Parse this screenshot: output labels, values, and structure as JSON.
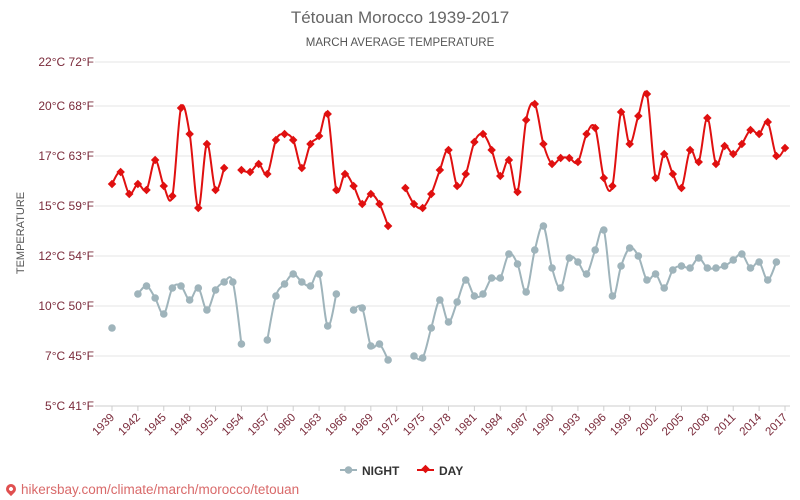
{
  "chart_data": {
    "type": "line",
    "title": "Tétouan Morocco 1939-2017",
    "subtitle": "MARCH AVERAGE TEMPERATURE",
    "ylabel": "TEMPERATURE",
    "ylim": [
      5,
      22.2
    ],
    "xlim": [
      1939,
      2017
    ],
    "grid": true,
    "legend_position": "bottom-center",
    "y_ticks": [
      {
        "value": 5,
        "label": "5°C 41°F"
      },
      {
        "value": 7.5,
        "label": "7°C 45°F"
      },
      {
        "value": 10,
        "label": "10°C 50°F"
      },
      {
        "value": 12.5,
        "label": "12°C 54°F"
      },
      {
        "value": 15,
        "label": "15°C 59°F"
      },
      {
        "value": 17.5,
        "label": "17°C 63°F"
      },
      {
        "value": 20,
        "label": "20°C 68°F"
      },
      {
        "value": 22.2,
        "label": "22°C 72°F"
      }
    ],
    "x_ticks": [
      "1939",
      "1942",
      "1945",
      "1948",
      "1951",
      "1954",
      "1957",
      "1960",
      "1963",
      "1966",
      "1969",
      "1972",
      "1975",
      "1978",
      "1981",
      "1984",
      "1987",
      "1990",
      "1993",
      "1996",
      "1999",
      "2002",
      "2005",
      "2008",
      "2011",
      "2014",
      "2017"
    ],
    "x": [
      1939,
      1940,
      1941,
      1942,
      1943,
      1944,
      1945,
      1946,
      1947,
      1948,
      1949,
      1950,
      1951,
      1952,
      1953,
      1954,
      1955,
      1956,
      1957,
      1958,
      1959,
      1960,
      1961,
      1962,
      1963,
      1964,
      1965,
      1966,
      1967,
      1968,
      1969,
      1970,
      1971,
      1972,
      1973,
      1974,
      1975,
      1976,
      1977,
      1978,
      1979,
      1980,
      1981,
      1982,
      1983,
      1984,
      1985,
      1986,
      1987,
      1988,
      1989,
      1990,
      1991,
      1992,
      1993,
      1994,
      1995,
      1996,
      1997,
      1998,
      1999,
      2000,
      2001,
      2002,
      2003,
      2004,
      2005,
      2006,
      2007,
      2008,
      2009,
      2010,
      2011,
      2012,
      2013,
      2014,
      2015,
      2016,
      2017
    ],
    "series": [
      {
        "name": "NIGHT",
        "color": "#9fb4bb",
        "values": [
          8.9,
          null,
          null,
          10.6,
          11.0,
          10.4,
          9.6,
          10.9,
          11.0,
          10.3,
          10.9,
          9.8,
          10.8,
          11.2,
          11.2,
          8.1,
          null,
          null,
          8.3,
          10.5,
          11.1,
          11.6,
          11.2,
          11.0,
          11.6,
          9.0,
          10.6,
          null,
          9.8,
          9.9,
          8.0,
          8.1,
          7.3,
          null,
          null,
          7.5,
          7.4,
          8.9,
          10.3,
          9.2,
          10.2,
          11.3,
          10.5,
          10.6,
          11.4,
          11.4,
          12.6,
          12.1,
          10.7,
          12.8,
          14.0,
          11.9,
          10.9,
          12.4,
          12.2,
          11.6,
          12.8,
          13.8,
          10.5,
          12.0,
          12.9,
          12.5,
          11.3,
          11.6,
          10.9,
          11.8,
          12.0,
          11.9,
          12.4,
          11.9,
          11.9,
          12.0,
          12.3,
          12.6,
          11.9,
          12.2,
          11.3,
          12.2,
          null
        ]
      },
      {
        "name": "DAY",
        "color": "#e01010",
        "values": [
          16.1,
          16.7,
          15.6,
          16.1,
          15.8,
          17.3,
          16.0,
          15.5,
          19.9,
          18.6,
          14.9,
          18.1,
          15.8,
          16.9,
          null,
          16.8,
          16.7,
          17.1,
          16.6,
          18.3,
          18.6,
          18.3,
          16.9,
          18.1,
          18.5,
          19.6,
          15.8,
          16.6,
          16.0,
          15.1,
          15.6,
          15.1,
          14.0,
          null,
          15.9,
          15.1,
          14.9,
          15.6,
          16.8,
          17.8,
          16.0,
          16.6,
          18.2,
          18.6,
          17.8,
          16.5,
          17.3,
          15.7,
          19.3,
          20.1,
          18.1,
          17.1,
          17.4,
          17.4,
          17.2,
          18.6,
          18.9,
          16.4,
          16.0,
          19.7,
          18.1,
          19.5,
          20.6,
          16.4,
          17.6,
          16.6,
          15.9,
          17.8,
          17.2,
          19.4,
          17.1,
          18.0,
          17.6,
          18.1,
          18.8,
          18.6,
          19.2,
          17.5,
          17.9
        ]
      }
    ]
  },
  "footer": {
    "text": "hikersbay.com/climate/march/morocco/tetouan"
  }
}
